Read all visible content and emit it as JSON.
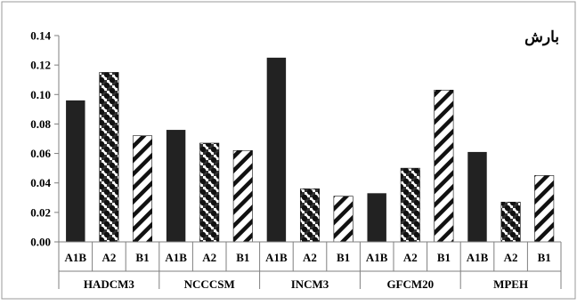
{
  "chart_data": {
    "type": "bar",
    "title": "بارش",
    "xlabel": "",
    "ylabel": "",
    "ylim": [
      0,
      0.14
    ],
    "yticks": [
      "0.00",
      "0.02",
      "0.04",
      "0.06",
      "0.08",
      "0.10",
      "0.12",
      "0.14"
    ],
    "grid": false,
    "legend": "none",
    "groups": [
      "HADCM3",
      "NCCCSM",
      "INCM3",
      "GFCM20",
      "MPEH"
    ],
    "scenarios": [
      "A1B",
      "A2",
      "B1"
    ],
    "bars": [
      {
        "group": "HADCM3",
        "scenario": "A1B",
        "value": 0.096
      },
      {
        "group": "HADCM3",
        "scenario": "A2",
        "value": 0.115
      },
      {
        "group": "HADCM3",
        "scenario": "B1",
        "value": 0.072
      },
      {
        "group": "NCCCSM",
        "scenario": "A1B",
        "value": 0.076
      },
      {
        "group": "NCCCSM",
        "scenario": "A2",
        "value": 0.067
      },
      {
        "group": "NCCCSM",
        "scenario": "B1",
        "value": 0.062
      },
      {
        "group": "INCM3",
        "scenario": "A1B",
        "value": 0.125
      },
      {
        "group": "INCM3",
        "scenario": "A2",
        "value": 0.036
      },
      {
        "group": "INCM3",
        "scenario": "B1",
        "value": 0.031
      },
      {
        "group": "GFCM20",
        "scenario": "A1B",
        "value": 0.033
      },
      {
        "group": "GFCM20",
        "scenario": "A2",
        "value": 0.05
      },
      {
        "group": "GFCM20",
        "scenario": "B1",
        "value": 0.103
      },
      {
        "group": "MPEH",
        "scenario": "A1B",
        "value": 0.061
      },
      {
        "group": "MPEH",
        "scenario": "A2",
        "value": 0.027
      },
      {
        "group": "MPEH",
        "scenario": "B1",
        "value": 0.045
      }
    ],
    "fills": {
      "A1B": "solid",
      "A2": "dotted-checker",
      "B1": "diagonal-stripes"
    },
    "colors": {
      "bar": "#222222",
      "axis": "#7f7f7f",
      "border": "#999999"
    }
  }
}
